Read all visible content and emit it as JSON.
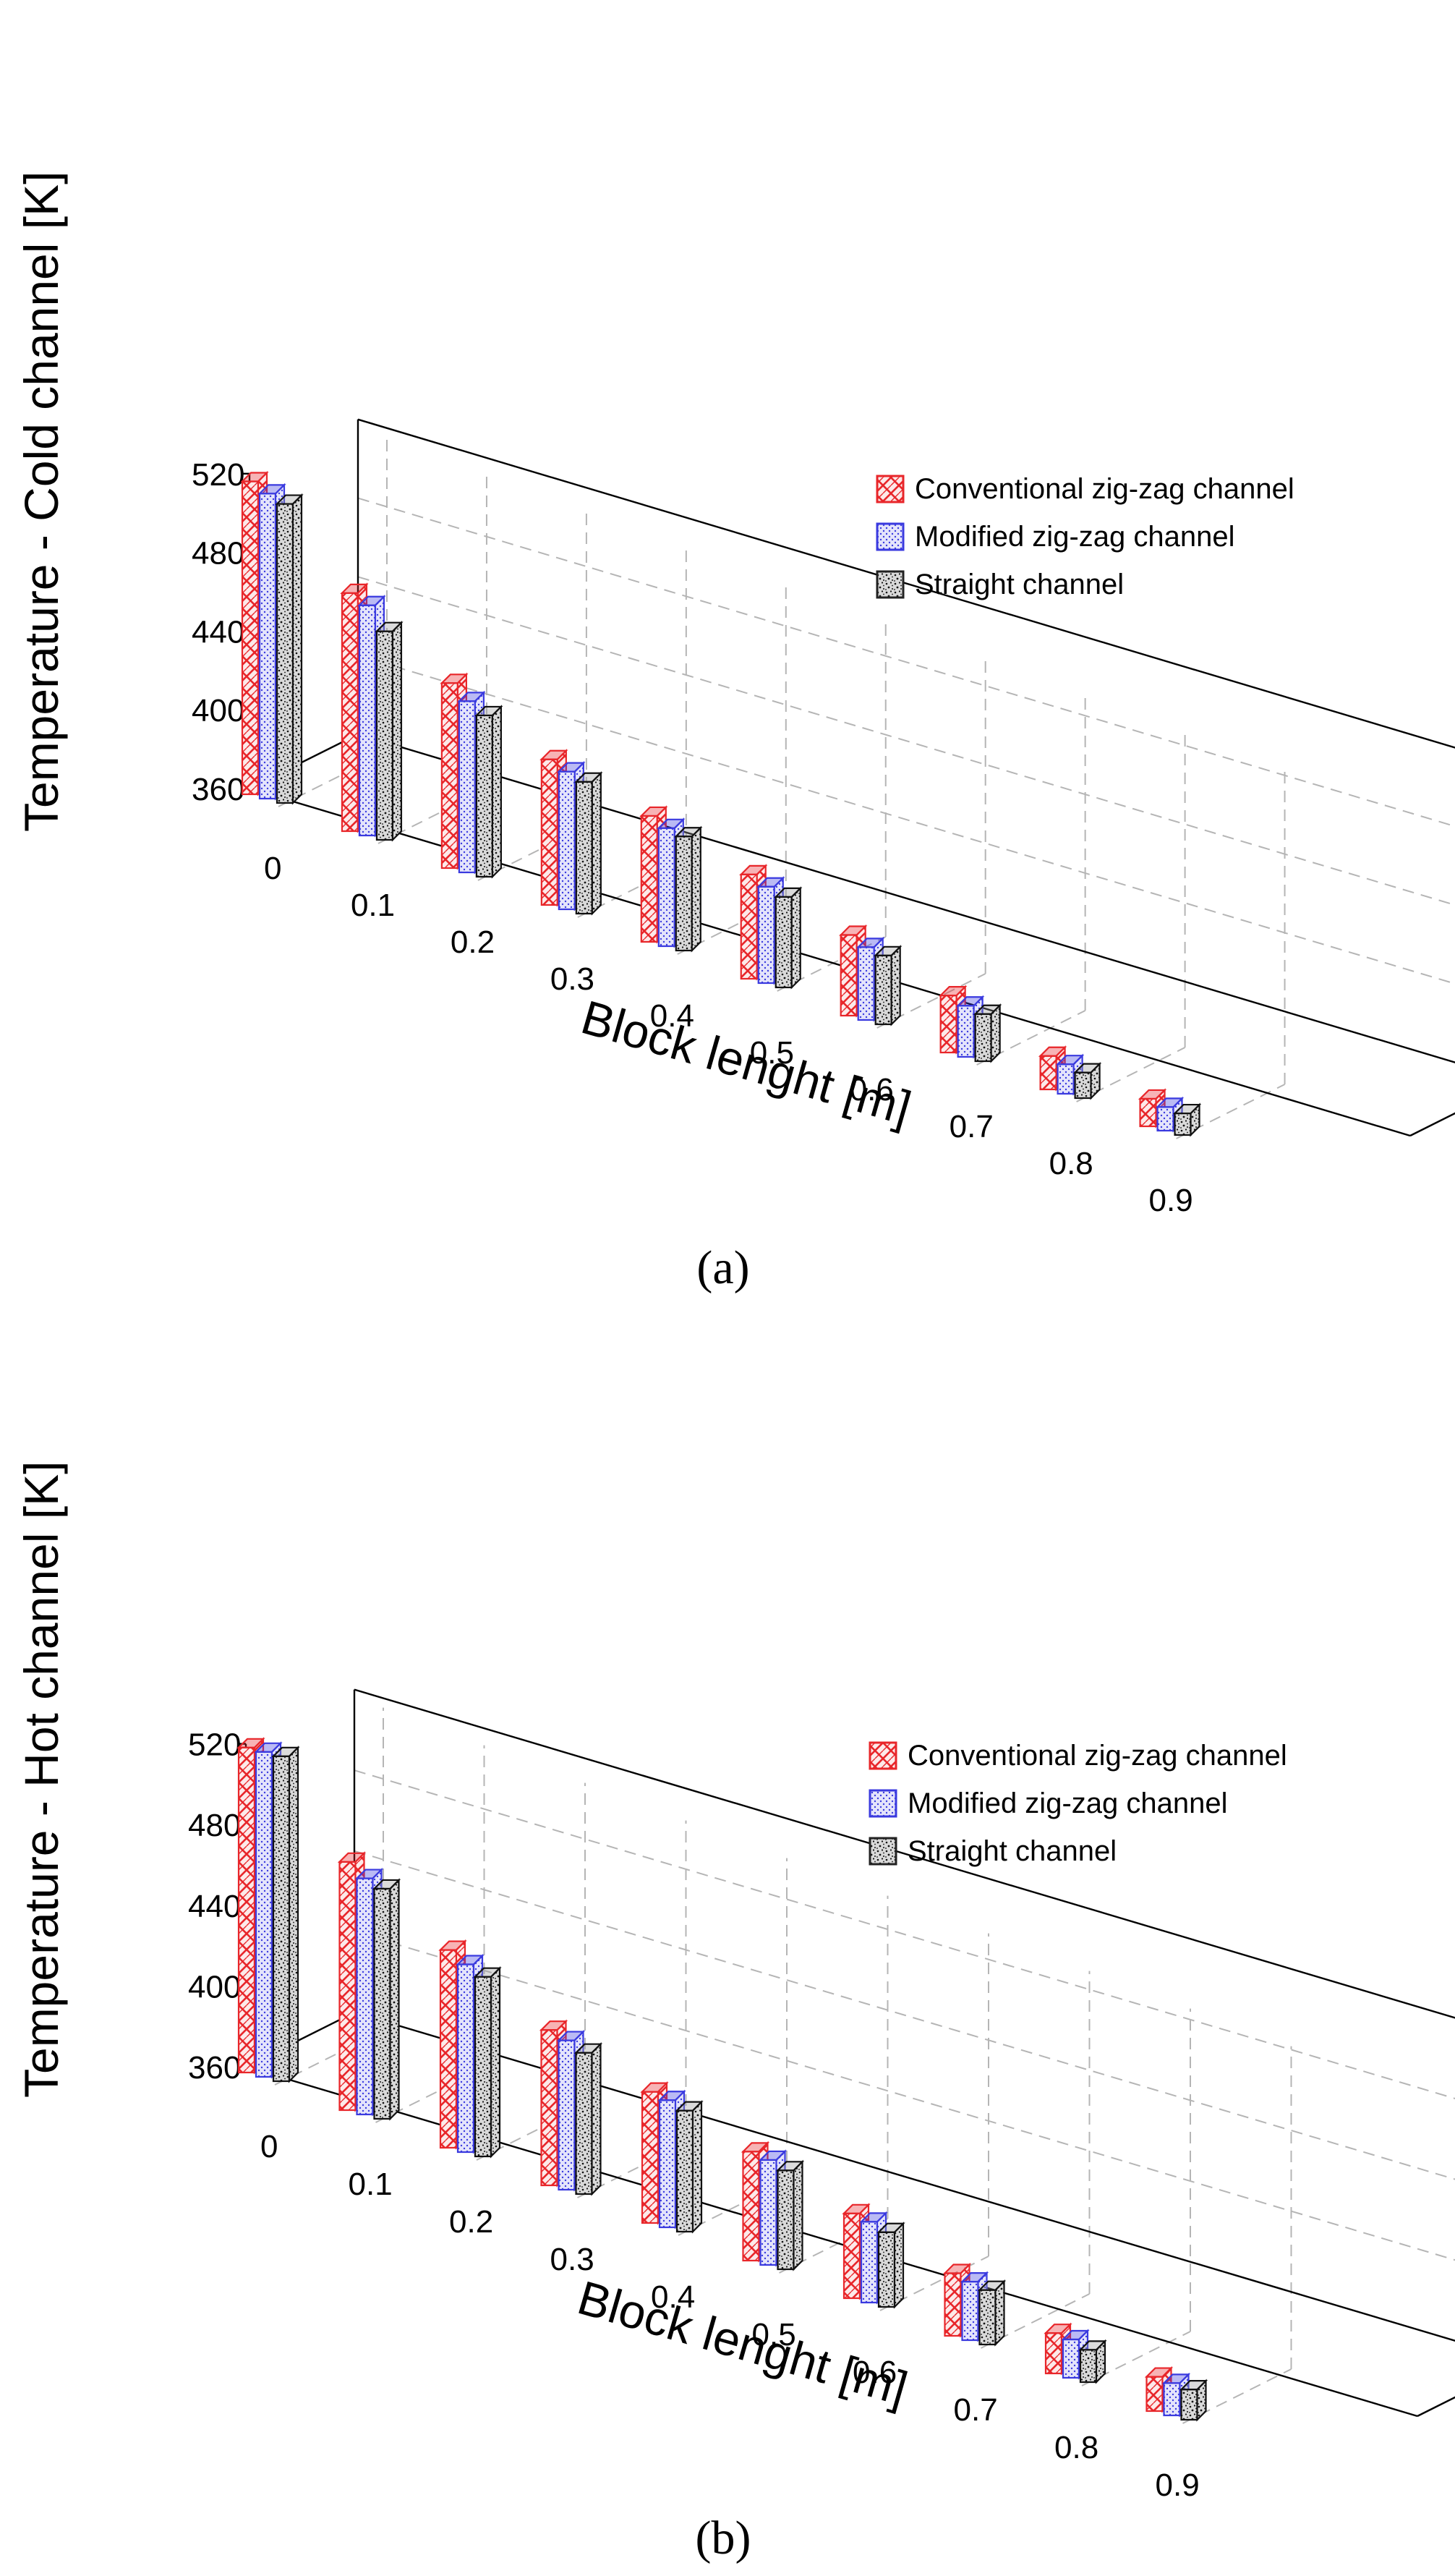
{
  "chart_data": [
    {
      "panel_label": "(a)",
      "type": "bar",
      "projection": "3d",
      "title": "",
      "xlabel": "Block lenght [m]",
      "ylabel": "Temperature - Cold channel [K]",
      "categories": [
        "0",
        "0.1",
        "0.2",
        "0.3",
        "0.4",
        "0.5",
        "0.6",
        "0.7",
        "0.8",
        "0.9"
      ],
      "yticks": [
        "360",
        "400",
        "440",
        "480",
        "520"
      ],
      "ylim": [
        360,
        520
      ],
      "grid": true,
      "legend_position": "right",
      "series": [
        {
          "name": "Conventional zig-zag channel",
          "color": "#e8262a",
          "pattern": "red-crosshatch",
          "values": [
            519,
            481,
            454,
            434,
            424,
            413,
            401,
            389,
            377,
            374
          ]
        },
        {
          "name": "Modified zig-zag channel",
          "color": "#3a3adf",
          "pattern": "blue-dots",
          "values": [
            515,
            477,
            447,
            430,
            420,
            409,
            397,
            386,
            375,
            372
          ]
        },
        {
          "name": "Straight channel",
          "color": "#222222",
          "pattern": "black-speckle",
          "values": [
            512,
            466,
            442,
            427,
            418,
            406,
            395,
            384,
            373,
            371
          ]
        }
      ]
    },
    {
      "panel_label": "(b)",
      "type": "bar",
      "projection": "3d",
      "title": "",
      "xlabel": "Block lenght [m]",
      "ylabel": "Temperature - Hot channel [K]",
      "categories": [
        "0",
        "0.1",
        "0.2",
        "0.3",
        "0.4",
        "0.5",
        "0.6",
        "0.7",
        "0.8",
        "0.9"
      ],
      "yticks": [
        "360",
        "400",
        "440",
        "480",
        "520"
      ],
      "ylim": [
        360,
        520
      ],
      "grid": true,
      "legend_position": "right",
      "series": [
        {
          "name": "Conventional zig-zag channel",
          "color": "#e8262a",
          "pattern": "red-crosshatch",
          "values": [
            521,
            483,
            458,
            437,
            425,
            414,
            402,
            391,
            380,
            377
          ]
        },
        {
          "name": "Modified zig-zag channel",
          "color": "#3a3adf",
          "pattern": "blue-dots",
          "values": [
            521,
            477,
            453,
            434,
            423,
            412,
            400,
            389,
            379,
            376
          ]
        },
        {
          "name": "Straight channel",
          "color": "#222222",
          "pattern": "black-speckle",
          "values": [
            521,
            474,
            449,
            430,
            420,
            409,
            397,
            387,
            376,
            375
          ]
        }
      ]
    }
  ]
}
